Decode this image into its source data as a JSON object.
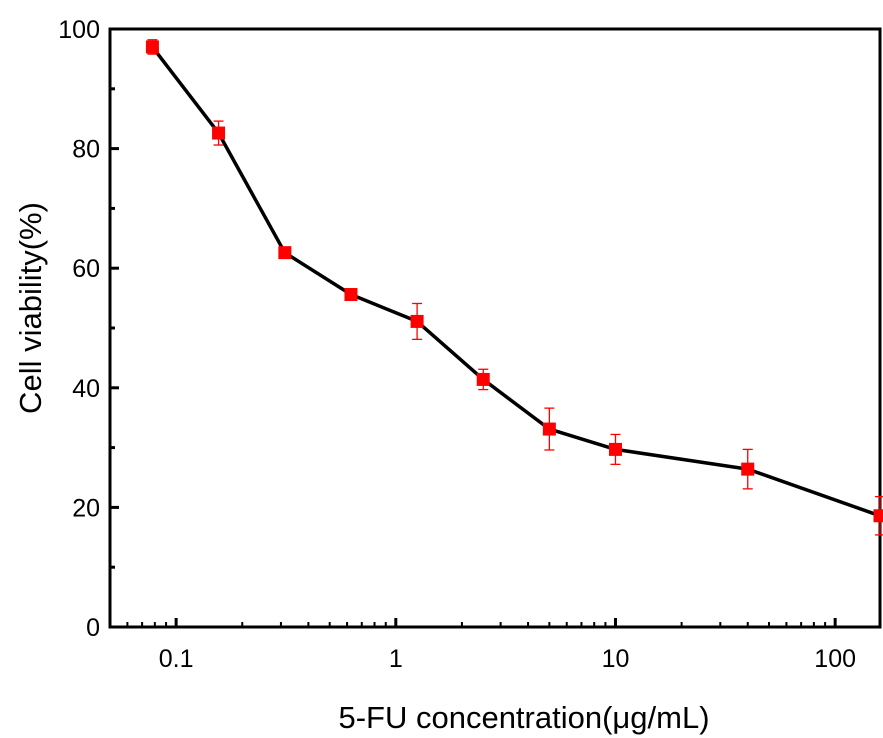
{
  "chart_data": {
    "type": "line",
    "title": "",
    "xlabel": "5-FU concentration(μg/mL)",
    "ylabel": "Cell viability(%)",
    "x_scale": "log",
    "xlim": [
      0.05,
      160
    ],
    "ylim": [
      0,
      100
    ],
    "x_ticks": [
      0.1,
      1,
      10,
      100
    ],
    "x_tick_labels": [
      "0.1",
      "1",
      "10",
      "100"
    ],
    "y_ticks": [
      0,
      20,
      40,
      60,
      80,
      100
    ],
    "y_tick_labels": [
      "0",
      "20",
      "40",
      "60",
      "80",
      "100"
    ],
    "grid": false,
    "legend": "none",
    "line_color": "#000000",
    "marker_color": "#ff0000",
    "marker": "square",
    "series": [
      {
        "x": [
          0.078,
          0.156,
          0.3125,
          0.625,
          1.25,
          2.5,
          5,
          10,
          40,
          160
        ],
        "y": [
          97.0,
          82.6,
          62.6,
          55.6,
          51.1,
          41.4,
          33.1,
          29.7,
          26.4,
          18.6
        ],
        "error": [
          1.2,
          2.0,
          0.8,
          0.7,
          3.0,
          1.7,
          3.5,
          2.5,
          3.3,
          3.2
        ]
      }
    ]
  }
}
